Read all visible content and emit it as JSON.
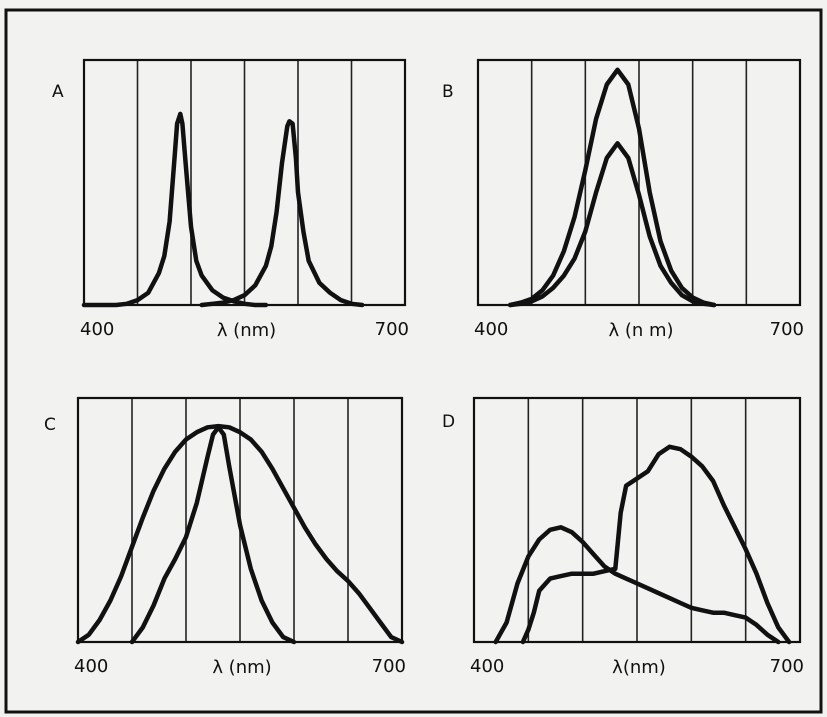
{
  "chart_data": [
    {
      "panel_label": "A",
      "type": "line",
      "xlabel": "λ (nm)",
      "x_tick_labels": [
        "400",
        "700"
      ],
      "xlim": [
        400,
        700
      ],
      "ylim": [
        0,
        1
      ],
      "series": [
        {
          "x": [
            400,
            410,
            420,
            430,
            440,
            450,
            460,
            470,
            475,
            480,
            485,
            487,
            490,
            492,
            495,
            500,
            505,
            510,
            520,
            530,
            540,
            550,
            560,
            570
          ],
          "values": [
            0,
            0,
            0,
            0,
            0.005,
            0.02,
            0.05,
            0.13,
            0.2,
            0.34,
            0.62,
            0.74,
            0.78,
            0.74,
            0.58,
            0.32,
            0.18,
            0.12,
            0.06,
            0.03,
            0.015,
            0.005,
            0,
            0
          ]
        },
        {
          "x": [
            510,
            520,
            530,
            540,
            550,
            560,
            570,
            575,
            580,
            585,
            590,
            592,
            595,
            598,
            600,
            605,
            610,
            620,
            630,
            640,
            650,
            660
          ],
          "values": [
            0,
            0.005,
            0.01,
            0.02,
            0.04,
            0.08,
            0.16,
            0.24,
            0.38,
            0.58,
            0.73,
            0.75,
            0.74,
            0.6,
            0.46,
            0.3,
            0.18,
            0.09,
            0.05,
            0.02,
            0.005,
            0
          ]
        }
      ]
    },
    {
      "panel_label": "B",
      "type": "line",
      "xlabel": "λ (n m)",
      "x_tick_labels": [
        "400",
        "700"
      ],
      "xlim": [
        400,
        700
      ],
      "ylim": [
        0,
        1
      ],
      "series": [
        {
          "x": [
            430,
            440,
            450,
            460,
            470,
            480,
            490,
            500,
            510,
            520,
            530,
            540,
            550,
            560,
            570,
            580,
            590,
            600,
            610,
            620
          ],
          "values": [
            0,
            0.01,
            0.025,
            0.06,
            0.12,
            0.22,
            0.36,
            0.55,
            0.76,
            0.9,
            0.96,
            0.9,
            0.72,
            0.46,
            0.26,
            0.14,
            0.07,
            0.03,
            0.01,
            0
          ]
        },
        {
          "x": [
            430,
            440,
            450,
            460,
            470,
            480,
            490,
            500,
            510,
            520,
            530,
            540,
            550,
            560,
            570,
            580,
            590,
            600,
            610,
            620
          ],
          "values": [
            0,
            0.005,
            0.015,
            0.035,
            0.07,
            0.12,
            0.19,
            0.3,
            0.46,
            0.6,
            0.66,
            0.6,
            0.45,
            0.28,
            0.16,
            0.09,
            0.04,
            0.015,
            0.005,
            0
          ]
        }
      ]
    },
    {
      "panel_label": "C",
      "type": "line",
      "xlabel": "λ (nm)",
      "x_tick_labels": [
        "400",
        "700"
      ],
      "xlim": [
        400,
        700
      ],
      "ylim": [
        0,
        1
      ],
      "series": [
        {
          "x": [
            400,
            410,
            420,
            430,
            440,
            450,
            460,
            470,
            480,
            490,
            500,
            510,
            520,
            530,
            540,
            550,
            560,
            570,
            580,
            590,
            600,
            610,
            620,
            630,
            640,
            650,
            660,
            670,
            680,
            690,
            700
          ],
          "values": [
            0,
            0.03,
            0.09,
            0.17,
            0.27,
            0.39,
            0.51,
            0.62,
            0.71,
            0.78,
            0.83,
            0.86,
            0.88,
            0.885,
            0.88,
            0.86,
            0.83,
            0.78,
            0.71,
            0.63,
            0.55,
            0.47,
            0.4,
            0.34,
            0.29,
            0.25,
            0.2,
            0.14,
            0.08,
            0.02,
            0
          ]
        },
        {
          "x": [
            450,
            460,
            470,
            480,
            490,
            500,
            510,
            520,
            525,
            530,
            535,
            540,
            550,
            560,
            570,
            580,
            590,
            600
          ],
          "values": [
            0,
            0.06,
            0.15,
            0.26,
            0.34,
            0.43,
            0.57,
            0.76,
            0.85,
            0.88,
            0.85,
            0.72,
            0.48,
            0.3,
            0.17,
            0.08,
            0.02,
            0
          ]
        }
      ]
    },
    {
      "panel_label": "D",
      "type": "line",
      "xlabel": "λ(nm)",
      "x_tick_labels": [
        "400",
        "700"
      ],
      "xlim": [
        400,
        700
      ],
      "ylim": [
        0,
        1
      ],
      "series": [
        {
          "x": [
            420,
            430,
            440,
            450,
            460,
            470,
            480,
            490,
            500,
            510,
            520,
            530,
            540,
            550,
            560,
            570,
            580,
            590,
            600,
            610,
            620,
            630,
            640,
            650,
            660,
            670,
            680
          ],
          "values": [
            0,
            0.08,
            0.24,
            0.35,
            0.42,
            0.46,
            0.47,
            0.45,
            0.41,
            0.36,
            0.31,
            0.28,
            0.26,
            0.24,
            0.22,
            0.2,
            0.18,
            0.16,
            0.14,
            0.13,
            0.12,
            0.12,
            0.11,
            0.1,
            0.07,
            0.03,
            0
          ]
        },
        {
          "x": [
            445,
            450,
            455,
            460,
            470,
            480,
            490,
            500,
            510,
            520,
            530,
            535,
            540,
            550,
            560,
            570,
            580,
            590,
            600,
            610,
            620,
            630,
            640,
            650,
            660,
            670,
            680,
            690
          ],
          "values": [
            0,
            0.05,
            0.12,
            0.21,
            0.26,
            0.27,
            0.28,
            0.28,
            0.28,
            0.29,
            0.3,
            0.53,
            0.64,
            0.67,
            0.7,
            0.77,
            0.8,
            0.79,
            0.76,
            0.72,
            0.66,
            0.56,
            0.47,
            0.38,
            0.28,
            0.16,
            0.06,
            0
          ]
        }
      ]
    }
  ]
}
